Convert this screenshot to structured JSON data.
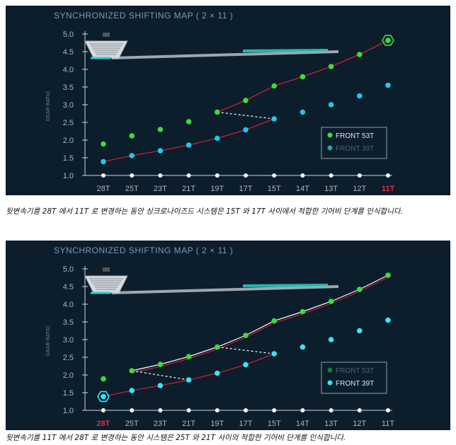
{
  "panels": [
    {
      "title": "SYNCHRONIZED SHIFTING MAP ( 2 × 11 )",
      "caption": "뒷변속기를 28T 에서 11T 로 변경하는 동안 싱크로나이즈드 시스템은 15T 와 17T 사이에서 적합한 기어비 단계를 인식합니다.",
      "highlight_gear": "11T",
      "legend": [
        {
          "label": "FRONT 53T",
          "color": "#35e03a",
          "active": true
        },
        {
          "label": "FRONT 39T",
          "color": "#1fa6b8",
          "active": false
        }
      ]
    },
    {
      "title": "SYNCHRONIZED SHIFTING MAP ( 2 × 11 )",
      "caption": "뒷변속기를 11T 에서 28T 로 변경하는 동안 시스템은 25T 와 21T 사이의 적합한 기어비 단계를 인식합니다.",
      "highlight_gear": "28T",
      "legend": [
        {
          "label": "FRONT 53T",
          "color": "#1d7a2e",
          "active": false
        },
        {
          "label": "FRONT 39T",
          "color": "#34e6ff",
          "active": true
        }
      ]
    }
  ],
  "chart_data": [
    {
      "type": "scatter",
      "title": "SYNCHRONIZED SHIFTING MAP ( 2 × 11 )",
      "ylabel": "GEAR RATIO",
      "ylim": [
        1.0,
        5.0
      ],
      "yticks": [
        "1.0",
        "1.5",
        "2.0",
        "2.5",
        "3.0",
        "3.5",
        "4.0",
        "4.5",
        "5.0"
      ],
      "categories": [
        "28T",
        "25T",
        "23T",
        "21T",
        "19T",
        "17T",
        "15T",
        "14T",
        "13T",
        "12T",
        "11T"
      ],
      "series": [
        {
          "name": "FRONT 53T",
          "values": [
            1.89,
            2.12,
            2.3,
            2.52,
            2.79,
            3.12,
            3.53,
            3.79,
            4.08,
            4.42,
            4.82
          ]
        },
        {
          "name": "FRONT 39T",
          "values": [
            1.39,
            1.56,
            1.7,
            1.86,
            2.05,
            2.29,
            2.6,
            2.79,
            3.0,
            3.25,
            3.55
          ]
        }
      ]
    },
    {
      "type": "scatter",
      "title": "SYNCHRONIZED SHIFTING MAP ( 2 × 11 )",
      "ylabel": "GEAR RATIO",
      "ylim": [
        1.0,
        5.0
      ],
      "yticks": [
        "1.0",
        "1.5",
        "2.0",
        "2.5",
        "3.0",
        "3.5",
        "4.0",
        "4.5",
        "5.0"
      ],
      "categories": [
        "28T",
        "25T",
        "23T",
        "21T",
        "19T",
        "17T",
        "15T",
        "14T",
        "13T",
        "12T",
        "11T"
      ],
      "series": [
        {
          "name": "FRONT 53T",
          "values": [
            1.89,
            2.12,
            2.3,
            2.52,
            2.79,
            3.12,
            3.53,
            3.79,
            4.08,
            4.42,
            4.82
          ]
        },
        {
          "name": "FRONT 39T",
          "values": [
            1.39,
            1.56,
            1.7,
            1.86,
            2.05,
            2.29,
            2.6,
            2.79,
            3.0,
            3.25,
            3.55
          ]
        }
      ]
    }
  ]
}
